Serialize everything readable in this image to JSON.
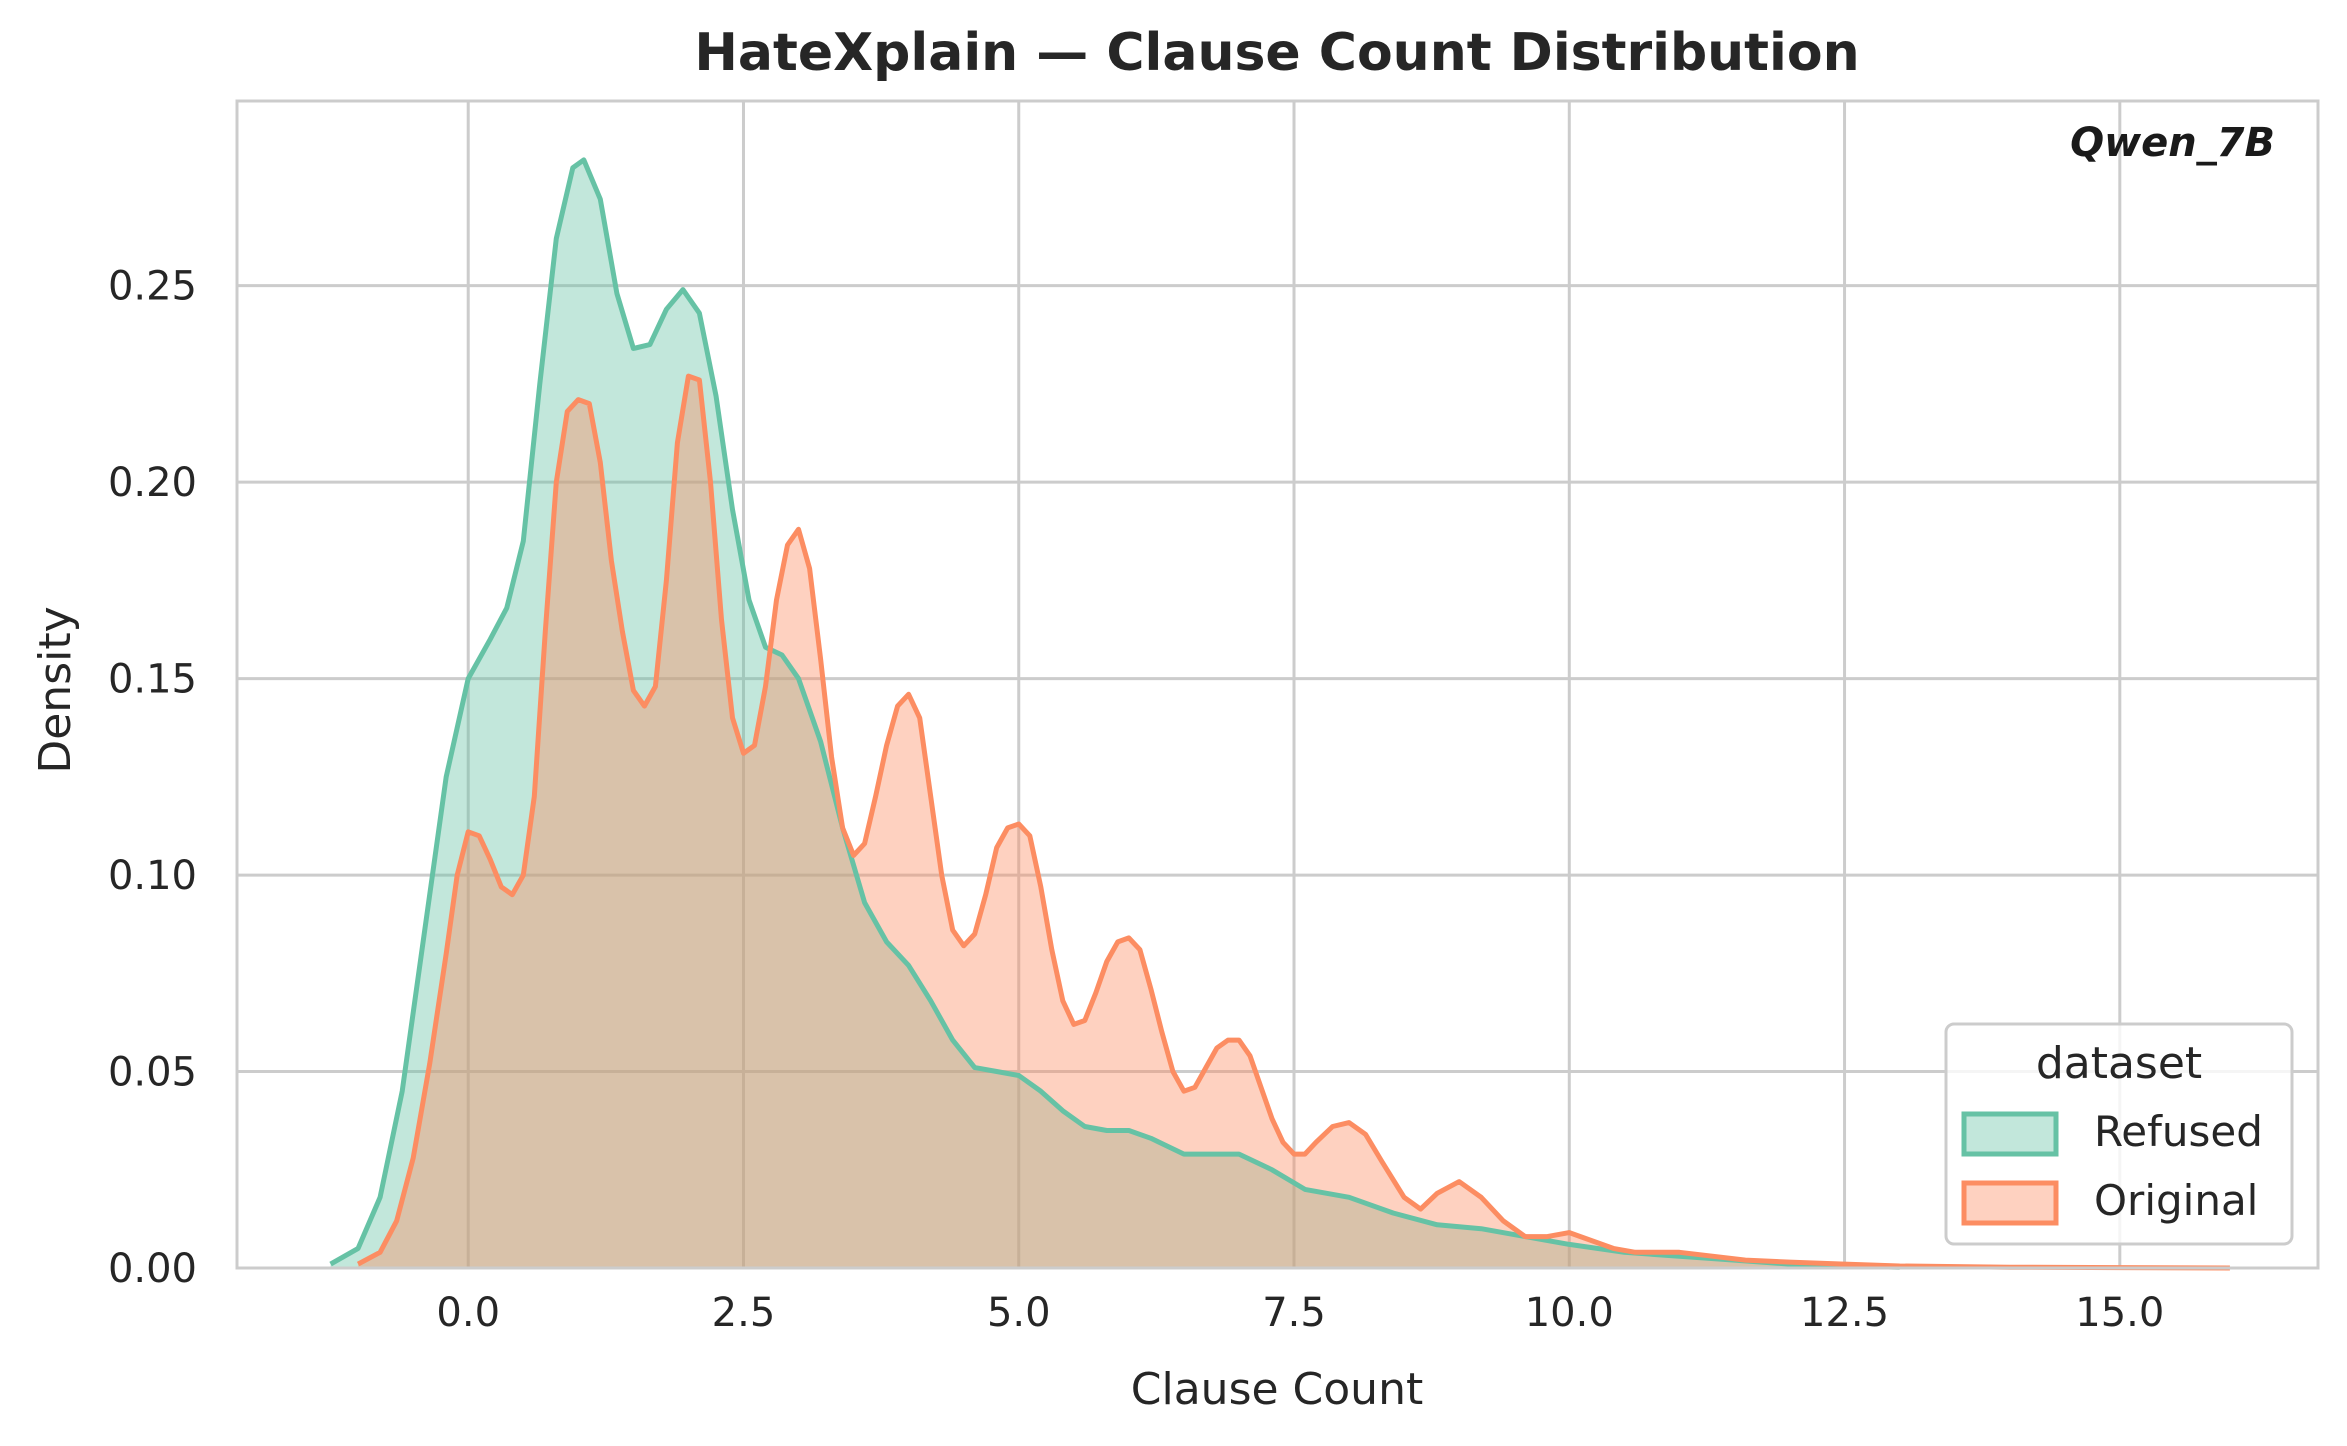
{
  "chart_data": {
    "type": "area",
    "title": "HateXplain — Clause Count Distribution",
    "annotation": "Qwen_7B",
    "xlabel": "Clause Count",
    "ylabel": "Density",
    "xlim": [
      -2.1,
      16.8
    ],
    "ylim": [
      0,
      0.297
    ],
    "xticks": [
      0.0,
      2.5,
      5.0,
      7.5,
      10.0,
      12.5,
      15.0
    ],
    "xtick_labels": [
      "0.0",
      "2.5",
      "5.0",
      "7.5",
      "10.0",
      "12.5",
      "15.0"
    ],
    "yticks": [
      0.0,
      0.05,
      0.1,
      0.15,
      0.2,
      0.25
    ],
    "ytick_labels": [
      "0.00",
      "0.05",
      "0.10",
      "0.15",
      "0.20",
      "0.25"
    ],
    "grid": true,
    "legend": {
      "title": "dataset",
      "placement": "bottom-right"
    },
    "series": [
      {
        "name": "Refused",
        "color": "#66c2a5",
        "points": [
          [
            -1.25,
            0.001
          ],
          [
            -1.0,
            0.005
          ],
          [
            -0.8,
            0.018
          ],
          [
            -0.6,
            0.045
          ],
          [
            -0.4,
            0.085
          ],
          [
            -0.2,
            0.125
          ],
          [
            0.0,
            0.15
          ],
          [
            0.2,
            0.16
          ],
          [
            0.35,
            0.168
          ],
          [
            0.5,
            0.185
          ],
          [
            0.65,
            0.225
          ],
          [
            0.8,
            0.262
          ],
          [
            0.95,
            0.28
          ],
          [
            1.05,
            0.282
          ],
          [
            1.2,
            0.272
          ],
          [
            1.35,
            0.248
          ],
          [
            1.5,
            0.234
          ],
          [
            1.65,
            0.235
          ],
          [
            1.8,
            0.244
          ],
          [
            1.95,
            0.249
          ],
          [
            2.1,
            0.243
          ],
          [
            2.25,
            0.222
          ],
          [
            2.4,
            0.193
          ],
          [
            2.55,
            0.17
          ],
          [
            2.7,
            0.158
          ],
          [
            2.85,
            0.156
          ],
          [
            3.0,
            0.15
          ],
          [
            3.2,
            0.134
          ],
          [
            3.4,
            0.112
          ],
          [
            3.6,
            0.093
          ],
          [
            3.8,
            0.083
          ],
          [
            4.0,
            0.077
          ],
          [
            4.2,
            0.068
          ],
          [
            4.4,
            0.058
          ],
          [
            4.6,
            0.051
          ],
          [
            4.8,
            0.05
          ],
          [
            5.0,
            0.049
          ],
          [
            5.2,
            0.045
          ],
          [
            5.4,
            0.04
          ],
          [
            5.6,
            0.036
          ],
          [
            5.8,
            0.035
          ],
          [
            6.0,
            0.035
          ],
          [
            6.2,
            0.033
          ],
          [
            6.5,
            0.029
          ],
          [
            6.8,
            0.029
          ],
          [
            7.0,
            0.029
          ],
          [
            7.3,
            0.025
          ],
          [
            7.6,
            0.02
          ],
          [
            8.0,
            0.018
          ],
          [
            8.4,
            0.014
          ],
          [
            8.8,
            0.011
          ],
          [
            9.2,
            0.01
          ],
          [
            9.6,
            0.008
          ],
          [
            10.0,
            0.006
          ],
          [
            10.5,
            0.004
          ],
          [
            11.0,
            0.003
          ],
          [
            11.5,
            0.002
          ],
          [
            12.0,
            0.001
          ],
          [
            12.5,
            0.0005
          ],
          [
            13.0,
            0.0002
          ]
        ]
      },
      {
        "name": "Original",
        "color": "#fc8d62",
        "points": [
          [
            -1.0,
            0.001
          ],
          [
            -0.8,
            0.004
          ],
          [
            -0.65,
            0.012
          ],
          [
            -0.5,
            0.028
          ],
          [
            -0.35,
            0.052
          ],
          [
            -0.2,
            0.08
          ],
          [
            -0.1,
            0.1
          ],
          [
            0.0,
            0.111
          ],
          [
            0.1,
            0.11
          ],
          [
            0.2,
            0.104
          ],
          [
            0.3,
            0.097
          ],
          [
            0.4,
            0.095
          ],
          [
            0.5,
            0.1
          ],
          [
            0.6,
            0.12
          ],
          [
            0.7,
            0.162
          ],
          [
            0.8,
            0.2
          ],
          [
            0.9,
            0.218
          ],
          [
            1.0,
            0.221
          ],
          [
            1.1,
            0.22
          ],
          [
            1.2,
            0.205
          ],
          [
            1.3,
            0.18
          ],
          [
            1.4,
            0.162
          ],
          [
            1.5,
            0.147
          ],
          [
            1.6,
            0.143
          ],
          [
            1.7,
            0.148
          ],
          [
            1.8,
            0.175
          ],
          [
            1.9,
            0.21
          ],
          [
            2.0,
            0.227
          ],
          [
            2.1,
            0.226
          ],
          [
            2.2,
            0.2
          ],
          [
            2.3,
            0.165
          ],
          [
            2.4,
            0.14
          ],
          [
            2.5,
            0.131
          ],
          [
            2.6,
            0.133
          ],
          [
            2.7,
            0.148
          ],
          [
            2.8,
            0.17
          ],
          [
            2.9,
            0.184
          ],
          [
            3.0,
            0.188
          ],
          [
            3.1,
            0.178
          ],
          [
            3.2,
            0.155
          ],
          [
            3.3,
            0.13
          ],
          [
            3.4,
            0.112
          ],
          [
            3.5,
            0.105
          ],
          [
            3.6,
            0.108
          ],
          [
            3.7,
            0.12
          ],
          [
            3.8,
            0.133
          ],
          [
            3.9,
            0.143
          ],
          [
            4.0,
            0.146
          ],
          [
            4.1,
            0.14
          ],
          [
            4.2,
            0.12
          ],
          [
            4.3,
            0.1
          ],
          [
            4.4,
            0.086
          ],
          [
            4.5,
            0.082
          ],
          [
            4.6,
            0.085
          ],
          [
            4.7,
            0.095
          ],
          [
            4.8,
            0.107
          ],
          [
            4.9,
            0.112
          ],
          [
            5.0,
            0.113
          ],
          [
            5.1,
            0.11
          ],
          [
            5.2,
            0.097
          ],
          [
            5.3,
            0.081
          ],
          [
            5.4,
            0.068
          ],
          [
            5.5,
            0.062
          ],
          [
            5.6,
            0.063
          ],
          [
            5.7,
            0.07
          ],
          [
            5.8,
            0.078
          ],
          [
            5.9,
            0.083
          ],
          [
            6.0,
            0.084
          ],
          [
            6.1,
            0.081
          ],
          [
            6.2,
            0.071
          ],
          [
            6.3,
            0.06
          ],
          [
            6.4,
            0.05
          ],
          [
            6.5,
            0.045
          ],
          [
            6.6,
            0.046
          ],
          [
            6.7,
            0.051
          ],
          [
            6.8,
            0.056
          ],
          [
            6.9,
            0.058
          ],
          [
            7.0,
            0.058
          ],
          [
            7.1,
            0.054
          ],
          [
            7.2,
            0.046
          ],
          [
            7.3,
            0.038
          ],
          [
            7.4,
            0.032
          ],
          [
            7.5,
            0.029
          ],
          [
            7.6,
            0.029
          ],
          [
            7.7,
            0.032
          ],
          [
            7.85,
            0.036
          ],
          [
            8.0,
            0.037
          ],
          [
            8.15,
            0.034
          ],
          [
            8.3,
            0.027
          ],
          [
            8.5,
            0.018
          ],
          [
            8.65,
            0.015
          ],
          [
            8.8,
            0.019
          ],
          [
            9.0,
            0.022
          ],
          [
            9.2,
            0.018
          ],
          [
            9.4,
            0.012
          ],
          [
            9.6,
            0.008
          ],
          [
            9.8,
            0.008
          ],
          [
            10.0,
            0.009
          ],
          [
            10.2,
            0.007
          ],
          [
            10.4,
            0.005
          ],
          [
            10.6,
            0.004
          ],
          [
            10.8,
            0.004
          ],
          [
            11.0,
            0.004
          ],
          [
            11.3,
            0.003
          ],
          [
            11.6,
            0.002
          ],
          [
            12.0,
            0.0015
          ],
          [
            12.5,
            0.001
          ],
          [
            13.0,
            0.0005
          ],
          [
            14.0,
            0.0002
          ],
          [
            15.0,
            0.0001
          ],
          [
            16.0,
            0.0
          ]
        ]
      }
    ]
  }
}
